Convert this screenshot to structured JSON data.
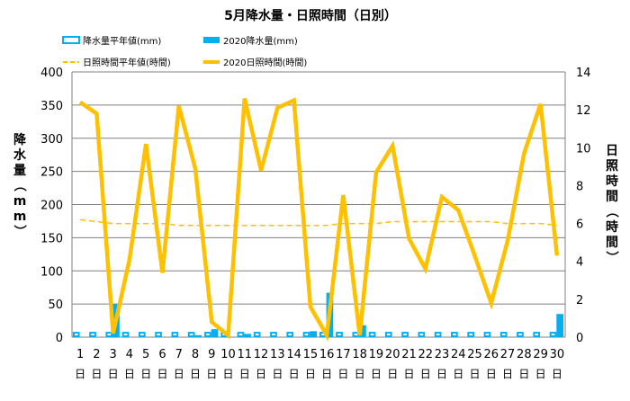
{
  "chart_data": {
    "type": "bar+line",
    "title": "5月降水量・日照時間（日別）",
    "left_axis_label": "降水量（mm）",
    "right_axis_label": "日照時間（時間）",
    "left_ylim": [
      0,
      400
    ],
    "left_ticks": [
      "0",
      "50",
      "100",
      "150",
      "200",
      "250",
      "300",
      "350",
      "400"
    ],
    "right_ylim": [
      0,
      14
    ],
    "right_ticks": [
      "0",
      "2",
      "4",
      "6",
      "8",
      "10",
      "12",
      "14"
    ],
    "categories": [
      "1",
      "2",
      "3",
      "4",
      "5",
      "6",
      "7",
      "8",
      "9",
      "10",
      "11",
      "12",
      "13",
      "14",
      "15",
      "16",
      "17",
      "18",
      "19",
      "20",
      "21",
      "22",
      "23",
      "24",
      "25",
      "26",
      "27",
      "28",
      "29",
      "30"
    ],
    "day_suffix": "日",
    "grid": "horizontal",
    "colors": {
      "bar_normal_border": "#00b0f0",
      "bar_2020": "#00b0f0",
      "line_2020": "#ffc000",
      "line_normal": "#ffc000",
      "grid": "#808080"
    },
    "series": [
      {
        "name": "降水量平年値(mm)",
        "axis": "left",
        "kind": "bar-outline",
        "values": [
          8,
          8,
          8,
          8,
          8,
          8,
          8,
          8,
          8,
          8,
          8,
          8,
          8,
          8,
          8,
          8,
          8,
          8,
          8,
          8,
          8,
          8,
          8,
          8,
          8,
          8,
          8,
          8,
          8,
          8
        ]
      },
      {
        "name": "2020降水量(mm)",
        "axis": "left",
        "kind": "bar",
        "values": [
          0,
          0,
          50,
          0,
          0,
          0,
          0,
          3,
          12,
          0,
          5,
          0,
          0,
          0,
          9,
          67,
          0,
          18,
          0,
          0,
          0,
          0,
          0,
          0,
          0,
          0,
          0,
          0,
          0,
          35
        ]
      },
      {
        "name": "日照時間平年値(時間)",
        "axis": "right",
        "kind": "dashed-line",
        "values": [
          6.2,
          6.1,
          6.0,
          6.0,
          6.0,
          6.0,
          5.9,
          5.9,
          5.9,
          5.9,
          5.9,
          5.9,
          5.9,
          5.9,
          5.9,
          5.9,
          6.0,
          6.0,
          6.0,
          6.1,
          6.1,
          6.1,
          6.1,
          6.1,
          6.1,
          6.1,
          6.0,
          6.0,
          6.0,
          5.9
        ]
      },
      {
        "name": "2020日照時間(時間)",
        "axis": "right",
        "kind": "line",
        "values": [
          12.4,
          11.8,
          0.2,
          4.1,
          10.2,
          3.4,
          12.2,
          8.9,
          0.8,
          0.1,
          12.6,
          8.8,
          12.1,
          12.5,
          1.6,
          0.1,
          7.5,
          0.1,
          8.7,
          10.1,
          5.2,
          3.6,
          7.4,
          6.7,
          4.3,
          1.8,
          5.1,
          9.7,
          12.3,
          4.3
        ]
      }
    ]
  }
}
